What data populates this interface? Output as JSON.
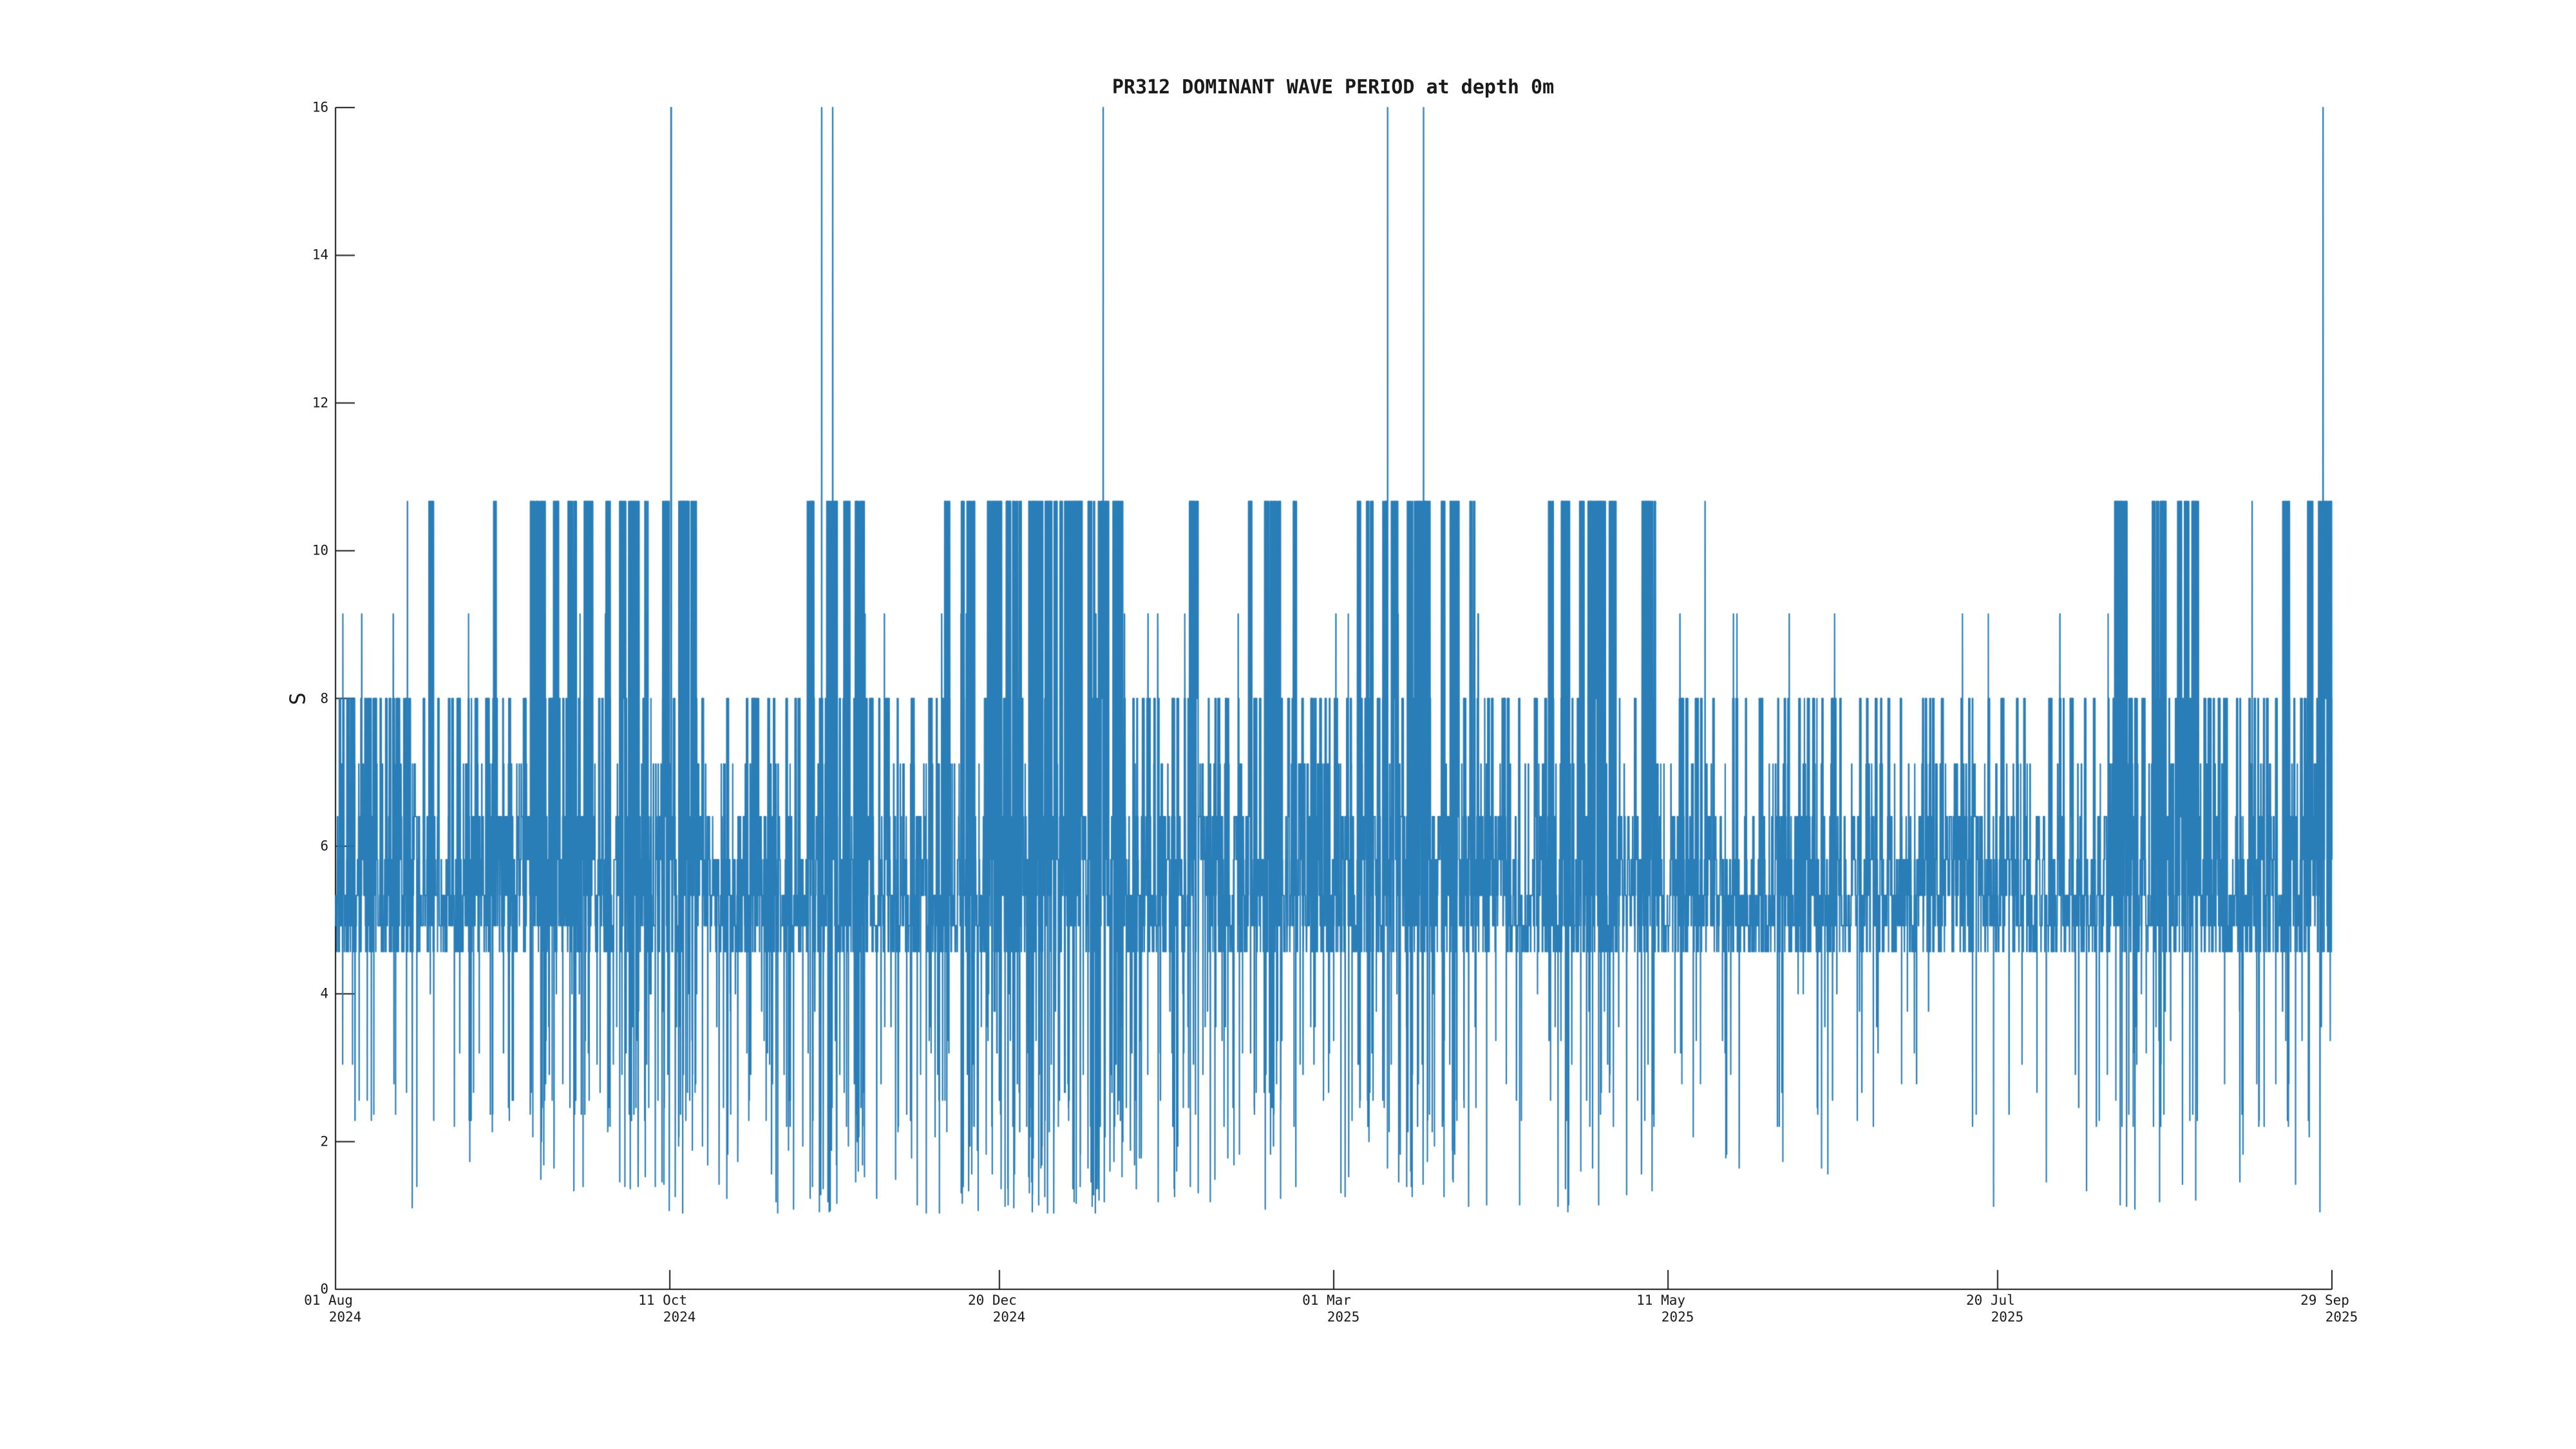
{
  "chart_data": {
    "type": "line",
    "title": "PR312 DOMINANT WAVE PERIOD at depth 0m",
    "ylabel": "S",
    "xlabel": "",
    "ylim": [
      0,
      16
    ],
    "yticks": [
      0,
      2,
      4,
      6,
      8,
      10,
      12,
      14,
      16
    ],
    "xticks": [
      {
        "line1": "01 Aug",
        "line2": "2024",
        "day": 0
      },
      {
        "line1": "11 Oct",
        "line2": "2024",
        "day": 71
      },
      {
        "line1": "20 Dec",
        "line2": "2024",
        "day": 141
      },
      {
        "line1": "01 Mar",
        "line2": "2025",
        "day": 212
      },
      {
        "line1": "11 May",
        "line2": "2025",
        "day": 283
      },
      {
        "line1": "20 Jul",
        "line2": "2025",
        "day": 353
      },
      {
        "line1": "29 Sep",
        "line2": "2025",
        "day": 424
      }
    ],
    "x_range_days": 424,
    "line_color": "#1f77b4",
    "axis_color": "#1a1a1a",
    "quantization_note": "dominant wave period quantized at 64/k seconds (k integer)",
    "levels_visible": [
      16,
      10.67,
      9.14,
      8,
      7.11,
      6.4,
      5.82,
      5.33,
      4.92,
      4.57,
      4.0,
      3.56,
      3.2,
      2.91,
      2.67,
      2.46,
      2.29,
      2.13,
      2.0,
      1.6,
      1.28,
      1.07
    ],
    "generation": {
      "seed": 20240801,
      "n": 19000,
      "block": 17,
      "segments": [
        [
          0.0,
          0.035,
          0.0,
          0.42,
          0.01,
          0.0008
        ],
        [
          0.035,
          0.095,
          0.02,
          0.29,
          0.016,
          0.002
        ],
        [
          0.095,
          0.15,
          0.2,
          0.25,
          0.018,
          0.007
        ],
        [
          0.15,
          0.18,
          0.3,
          0.21,
          0.02,
          0.01
        ],
        [
          0.18,
          0.235,
          0.045,
          0.27,
          0.022,
          0.013
        ],
        [
          0.235,
          0.268,
          0.22,
          0.23,
          0.022,
          0.015
        ],
        [
          0.268,
          0.312,
          0.025,
          0.31,
          0.02,
          0.014
        ],
        [
          0.312,
          0.395,
          0.28,
          0.21,
          0.022,
          0.016
        ],
        [
          0.395,
          0.455,
          0.035,
          0.27,
          0.02,
          0.011
        ],
        [
          0.455,
          0.482,
          0.18,
          0.25,
          0.018,
          0.008
        ],
        [
          0.482,
          0.508,
          0.05,
          0.27,
          0.016,
          0.007
        ],
        [
          0.508,
          0.568,
          0.2,
          0.25,
          0.018,
          0.009
        ],
        [
          0.568,
          0.602,
          0.015,
          0.31,
          0.013,
          0.004
        ],
        [
          0.602,
          0.66,
          0.16,
          0.27,
          0.015,
          0.006
        ],
        [
          0.66,
          0.885,
          0.0,
          0.22,
          0.01,
          0.0025
        ],
        [
          0.885,
          0.928,
          0.13,
          0.25,
          0.014,
          0.005
        ],
        [
          0.928,
          0.975,
          0.02,
          0.27,
          0.016,
          0.005
        ],
        [
          0.975,
          1.0,
          0.33,
          0.25,
          0.016,
          0.005
        ]
      ],
      "spikes_16s": [
        {
          "t": 0.168,
          "w": 5
        },
        {
          "t": 0.2435,
          "w": 2
        },
        {
          "t": 0.249,
          "w": 2
        },
        {
          "t": 0.3845,
          "w": 2
        },
        {
          "t": 0.527,
          "w": 2
        },
        {
          "t": 0.545,
          "w": 2
        },
        {
          "t": 0.9955,
          "w": 2
        }
      ],
      "singles_1067": [
        {
          "t": 0.036,
          "w": 2
        },
        {
          "t": 0.686,
          "w": 2
        },
        {
          "t": 0.96,
          "w": 2
        }
      ]
    }
  }
}
